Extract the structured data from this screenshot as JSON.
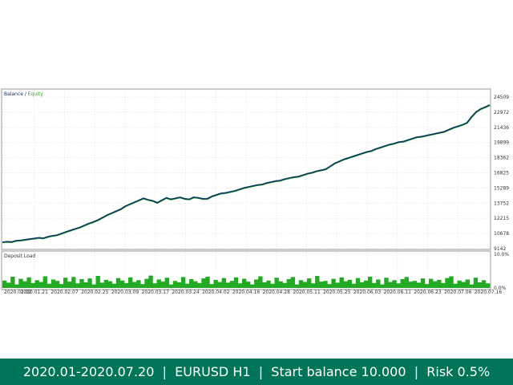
{
  "chart_data": {
    "type": "line",
    "panels": [
      {
        "name": "balance-equity",
        "legend": [
          "Balance",
          "Equity"
        ],
        "legend_placement": "top-left",
        "y_ticks": [
          9142,
          10678,
          12215,
          13752,
          15289,
          16825,
          18362,
          19899,
          21436,
          22972,
          24509
        ],
        "ylim": [
          9142,
          24509
        ],
        "grid": true,
        "series": [
          {
            "name": "Balance",
            "color": "#0d2a6e",
            "values": [
              9800,
              9850,
              9820,
              9950,
              9980,
              10050,
              10120,
              10180,
              10250,
              10200,
              10350,
              10450,
              10520,
              10680,
              10850,
              11000,
              11150,
              11300,
              11500,
              11700,
              11850,
              12050,
              12300,
              12550,
              12750,
              12950,
              13150,
              13450,
              13650,
              13850,
              14050,
              14250,
              14100,
              14000,
              13800,
              14050,
              14300,
              14150,
              14250,
              14350,
              14200,
              14150,
              14350,
              14300,
              14200,
              14200,
              14450,
              14600,
              14750,
              14800,
              14900,
              15000,
              15150,
              15300,
              15400,
              15500,
              15600,
              15650,
              15800,
              15900,
              16000,
              16050,
              16200,
              16300,
              16400,
              16450,
              16600,
              16750,
              16850,
              17000,
              17100,
              17200,
              17500,
              17800,
              18000,
              18200,
              18350,
              18500,
              18650,
              18800,
              18950,
              19050,
              19250,
              19400,
              19550,
              19700,
              19800,
              19950,
              20000,
              20150,
              20300,
              20450,
              20500,
              20600,
              20700,
              20800,
              20900,
              21000,
              21200,
              21400,
              21550,
              21700,
              21900,
              22500,
              23000,
              23300,
              23500,
              23700
            ]
          },
          {
            "name": "Equity",
            "color": "#22aa22",
            "values": [
              9780,
              9830,
              9800,
              9930,
              9960,
              10030,
              10100,
              10160,
              10230,
              10180,
              10330,
              10430,
              10500,
              10660,
              10830,
              10980,
              11130,
              11280,
              11480,
              11680,
              11830,
              12030,
              12280,
              12530,
              12730,
              12930,
              13130,
              13430,
              13630,
              13830,
              14030,
              14230,
              14080,
              13980,
              13780,
              14030,
              14280,
              14130,
              14230,
              14330,
              14180,
              14130,
              14330,
              14280,
              14180,
              14180,
              14430,
              14580,
              14730,
              14780,
              14880,
              14980,
              15130,
              15280,
              15380,
              15480,
              15580,
              15630,
              15780,
              15880,
              15980,
              16030,
              16180,
              16280,
              16380,
              16430,
              16580,
              16730,
              16830,
              16980,
              17080,
              17180,
              17480,
              17780,
              17980,
              18180,
              18330,
              18480,
              18630,
              18780,
              18930,
              19030,
              19230,
              19380,
              19530,
              19680,
              19780,
              19930,
              19980,
              20130,
              20280,
              20430,
              20480,
              20580,
              20680,
              20780,
              20880,
              20980,
              21180,
              21380,
              21530,
              21680,
              21880,
              22480,
              22980,
              23280,
              23480,
              23680
            ]
          }
        ]
      },
      {
        "name": "deposit-load",
        "legend": [
          "Deposit Load"
        ],
        "legend_placement": "top-left",
        "y_ticks": [
          "10.0%",
          "0.0%"
        ],
        "ylim": [
          0,
          10
        ],
        "grid": true,
        "series": [
          {
            "name": "Deposit Load",
            "color": "#22aa22",
            "values": [
              2.1,
              1.5,
              3.2,
              1.0,
              2.6,
              1.9,
              3.0,
              1.4,
              2.2,
              1.7,
              3.3,
              1.2,
              2.4,
              2.0,
              1.1,
              2.9,
              1.8,
              3.1,
              1.3,
              2.5,
              1.6,
              2.7,
              1.0,
              3.4,
              1.5,
              2.3,
              1.9,
              1.2,
              2.8,
              2.1,
              1.4,
              3.0,
              1.7,
              2.2,
              1.1,
              2.6,
              3.5,
              1.3,
              2.4,
              1.8,
              2.9,
              1.0,
              2.0,
              1.6,
              3.1,
              1.2,
              2.5,
              1.9,
              1.4,
              2.7,
              3.2,
              1.1,
              2.3,
              1.7,
              2.8,
              1.5,
              2.0,
              3.0,
              1.3,
              2.6,
              1.8,
              1.0,
              2.4,
              3.3,
              1.6,
              2.1,
              1.2,
              2.9,
              1.9,
              1.4,
              2.5,
              3.1,
              1.0,
              2.2,
              1.7,
              2.7,
              1.3,
              3.4,
              1.8,
              2.0,
              1.1,
              2.6,
              1.5,
              3.0,
              1.9,
              2.3,
              1.2,
              2.8,
              1.6,
              2.1,
              3.2,
              1.4,
              2.4,
              1.0,
              2.9,
              1.7,
              2.2,
              1.3,
              2.5,
              3.1,
              1.8,
              2.0,
              1.5,
              2.7,
              1.1,
              2.6,
              1.9,
              2.3,
              1.4,
              2.8,
              3.3,
              1.2,
              2.1,
              1.7,
              2.4,
              1.0,
              2.9,
              1.6,
              2.2,
              1.3
            ]
          }
        ]
      }
    ],
    "x_ticks": [
      "2020.01.02",
      "2020.01.21",
      "2020.02.07",
      "2020.02.25",
      "2020.03.09",
      "2020.03.17",
      "2020.03.24",
      "2020.04.02",
      "2020.04.16",
      "2020.04.28",
      "2020.05.11",
      "2020.05.25",
      "2020.06.03",
      "2020.06.11",
      "2020.06.23",
      "2020.07.06",
      "2020.07.16"
    ]
  },
  "footer": {
    "text": "2020.01-2020.07.20  |  EURUSD H1  |  Start balance 10.000  |  Risk 0.5%",
    "background": "#00755a"
  }
}
